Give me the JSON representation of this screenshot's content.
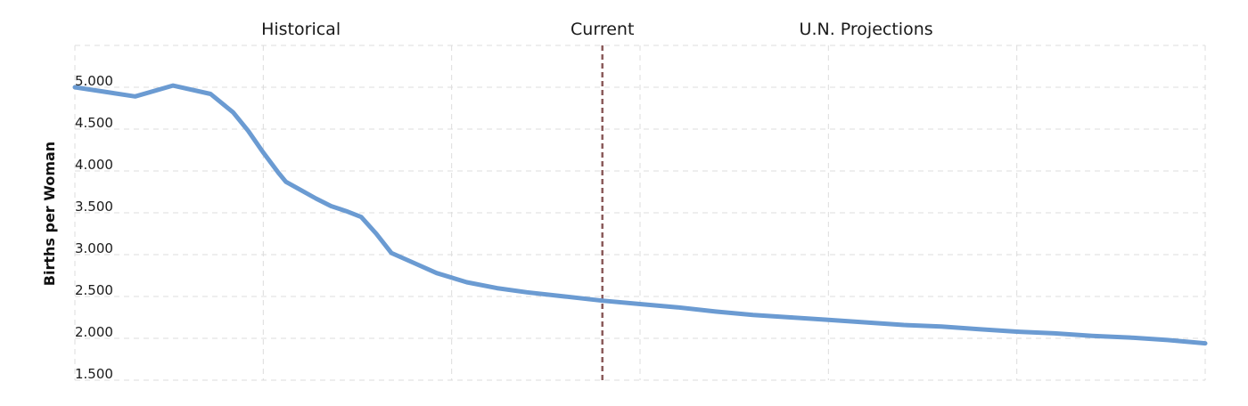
{
  "chart_data": {
    "type": "line",
    "xlabel": "",
    "ylabel": "Births per Woman",
    "x_range": [
      1950,
      2100
    ],
    "ylim": [
      1.5,
      5.5
    ],
    "y_ticks": [
      "5.000",
      "4.500",
      "4.000",
      "3.500",
      "3.000",
      "2.500",
      "2.000",
      "1.500"
    ],
    "y_tick_values": [
      5.0,
      4.5,
      4.0,
      3.5,
      3.0,
      2.5,
      2.0,
      1.5
    ],
    "grid": true,
    "period_labels": [
      {
        "label": "Historical",
        "x": 1980
      },
      {
        "label": "Current",
        "x": 2020
      },
      {
        "label": "U.N. Projections",
        "x": 2055
      }
    ],
    "current_year": 2020,
    "series": [
      {
        "color": "#6b9bd2",
        "points": [
          [
            1950,
            5.0
          ],
          [
            1958,
            4.89
          ],
          [
            1963,
            5.02
          ],
          [
            1968,
            4.92
          ],
          [
            1971,
            4.7
          ],
          [
            1973,
            4.48
          ],
          [
            1975,
            4.22
          ],
          [
            1977,
            3.98
          ],
          [
            1978,
            3.87
          ],
          [
            1980,
            3.77
          ],
          [
            1982,
            3.67
          ],
          [
            1984,
            3.58
          ],
          [
            1986,
            3.52
          ],
          [
            1988,
            3.45
          ],
          [
            1990,
            3.25
          ],
          [
            1992,
            3.02
          ],
          [
            1995,
            2.9
          ],
          [
            1998,
            2.78
          ],
          [
            2002,
            2.67
          ],
          [
            2006,
            2.6
          ],
          [
            2010,
            2.55
          ],
          [
            2015,
            2.5
          ],
          [
            2020,
            2.45
          ],
          [
            2025,
            2.41
          ],
          [
            2030,
            2.37
          ],
          [
            2035,
            2.32
          ],
          [
            2040,
            2.28
          ],
          [
            2045,
            2.25
          ],
          [
            2050,
            2.22
          ],
          [
            2055,
            2.19
          ],
          [
            2060,
            2.16
          ],
          [
            2065,
            2.14
          ],
          [
            2070,
            2.11
          ],
          [
            2075,
            2.08
          ],
          [
            2080,
            2.06
          ],
          [
            2085,
            2.03
          ],
          [
            2090,
            2.01
          ],
          [
            2095,
            1.98
          ],
          [
            2100,
            1.94
          ]
        ]
      }
    ]
  },
  "colors": {
    "series": "#6b9bd2",
    "current_marker": "#8a5a5a",
    "grid": "#dcdcdc"
  }
}
